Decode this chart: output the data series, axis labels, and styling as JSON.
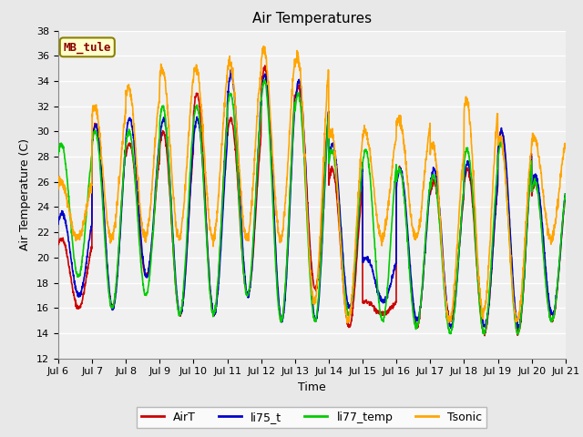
{
  "title": "Air Temperatures",
  "xlabel": "Time",
  "ylabel": "Air Temperature (C)",
  "ylim": [
    12,
    38
  ],
  "yticks": [
    12,
    14,
    16,
    18,
    20,
    22,
    24,
    26,
    28,
    30,
    32,
    34,
    36,
    38
  ],
  "annotation_text": "MB_tule",
  "annotation_color": "#8B0000",
  "annotation_bg": "#FFFFCC",
  "annotation_border": "#8B8000",
  "series": {
    "AirT": {
      "color": "#CC0000",
      "lw": 1.2
    },
    "li75_t": {
      "color": "#0000CC",
      "lw": 1.2
    },
    "li77_temp": {
      "color": "#00CC00",
      "lw": 1.2
    },
    "Tsonic": {
      "color": "#FFA500",
      "lw": 1.2
    }
  },
  "background_color": "#E8E8E8",
  "plot_bg": "#F0F0F0",
  "grid_color": "#FFFFFF",
  "title_fontsize": 11,
  "label_fontsize": 9,
  "tick_fontsize": 8,
  "legend_fontsize": 9,
  "daily_min_AirT": [
    16.0,
    16.0,
    18.5,
    15.5,
    15.5,
    17.0,
    15.0,
    17.5,
    14.5,
    15.5,
    14.5,
    15.0,
    14.0,
    14.0,
    15.0
  ],
  "daily_max_AirT": [
    21.5,
    30.5,
    29.0,
    30.0,
    33.0,
    31.0,
    35.0,
    33.5,
    27.0,
    16.5,
    27.0,
    26.0,
    27.0,
    30.0,
    26.0
  ],
  "daily_min_li75": [
    17.0,
    16.0,
    18.5,
    15.5,
    15.5,
    17.0,
    15.0,
    15.0,
    16.0,
    16.5,
    15.0,
    14.5,
    14.5,
    14.5,
    15.5
  ],
  "daily_max_li75": [
    23.5,
    30.5,
    31.0,
    31.0,
    31.0,
    34.5,
    34.5,
    34.0,
    29.0,
    20.0,
    27.0,
    27.0,
    27.5,
    30.0,
    26.5
  ],
  "daily_min_li77": [
    18.5,
    16.0,
    17.0,
    15.5,
    15.5,
    17.0,
    15.0,
    15.0,
    15.5,
    15.0,
    14.5,
    14.0,
    14.0,
    14.0,
    15.0
  ],
  "daily_max_li77": [
    29.0,
    30.0,
    30.0,
    32.0,
    32.0,
    33.0,
    34.0,
    33.0,
    28.5,
    28.5,
    27.0,
    26.5,
    28.5,
    29.0,
    26.0
  ],
  "daily_min_Ts": [
    21.5,
    21.5,
    21.5,
    21.5,
    21.5,
    21.5,
    21.5,
    16.5,
    15.0,
    21.5,
    21.5,
    15.0,
    15.5,
    15.0,
    21.5
  ],
  "daily_max_Ts": [
    26.0,
    32.0,
    33.5,
    35.0,
    35.0,
    35.5,
    36.5,
    36.0,
    30.0,
    30.0,
    31.0,
    29.0,
    32.5,
    29.5,
    29.5
  ]
}
